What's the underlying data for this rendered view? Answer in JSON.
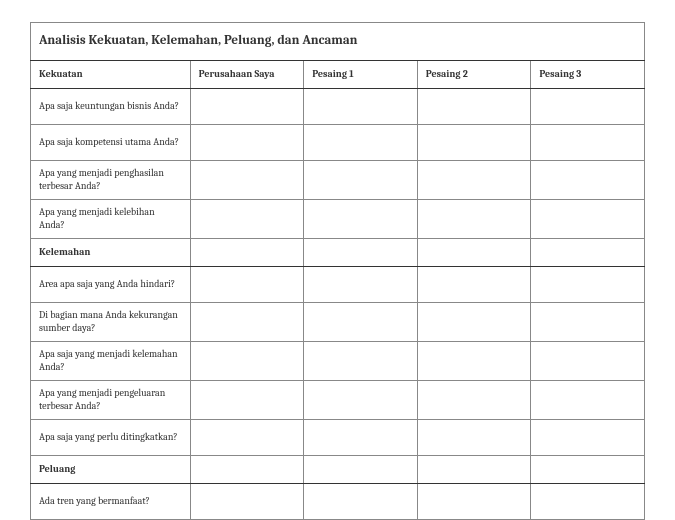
{
  "title": "Analisis Kekuatan, Kelemahan, Peluang, dan Ancaman",
  "columns": {
    "c0": "Kekuatan",
    "c1": "Perusahaan Saya",
    "c2": "Pesaing 1",
    "c3": "Pesaing 2",
    "c4": "Pesaing 3"
  },
  "sections": {
    "kekuatan": {
      "q0": "Apa saja keuntungan bisnis Anda?",
      "q1": "Apa saja kompetensi utama Anda?",
      "q2": "Apa yang menjadi penghasilan terbesar Anda?",
      "q3": "Apa yang menjadi kelebihan Anda?"
    },
    "kelemahan": {
      "label": "Kelemahan",
      "q0": "Area apa saja yang Anda hindari?",
      "q1": "Di bagian mana Anda kekurangan sumber daya?",
      "q2": "Apa saja yang menjadi kelemahan Anda?",
      "q3": "Apa yang menjadi pengeluaran terbesar Anda?",
      "q4": "Apa saja yang perlu ditingkatkan?"
    },
    "peluang": {
      "label": "Peluang",
      "q0": "Ada tren yang bermanfaat?"
    }
  },
  "colors": {
    "border_dark": "#333333",
    "border_light": "#888888",
    "text": "#333333",
    "background": "#ffffff"
  }
}
